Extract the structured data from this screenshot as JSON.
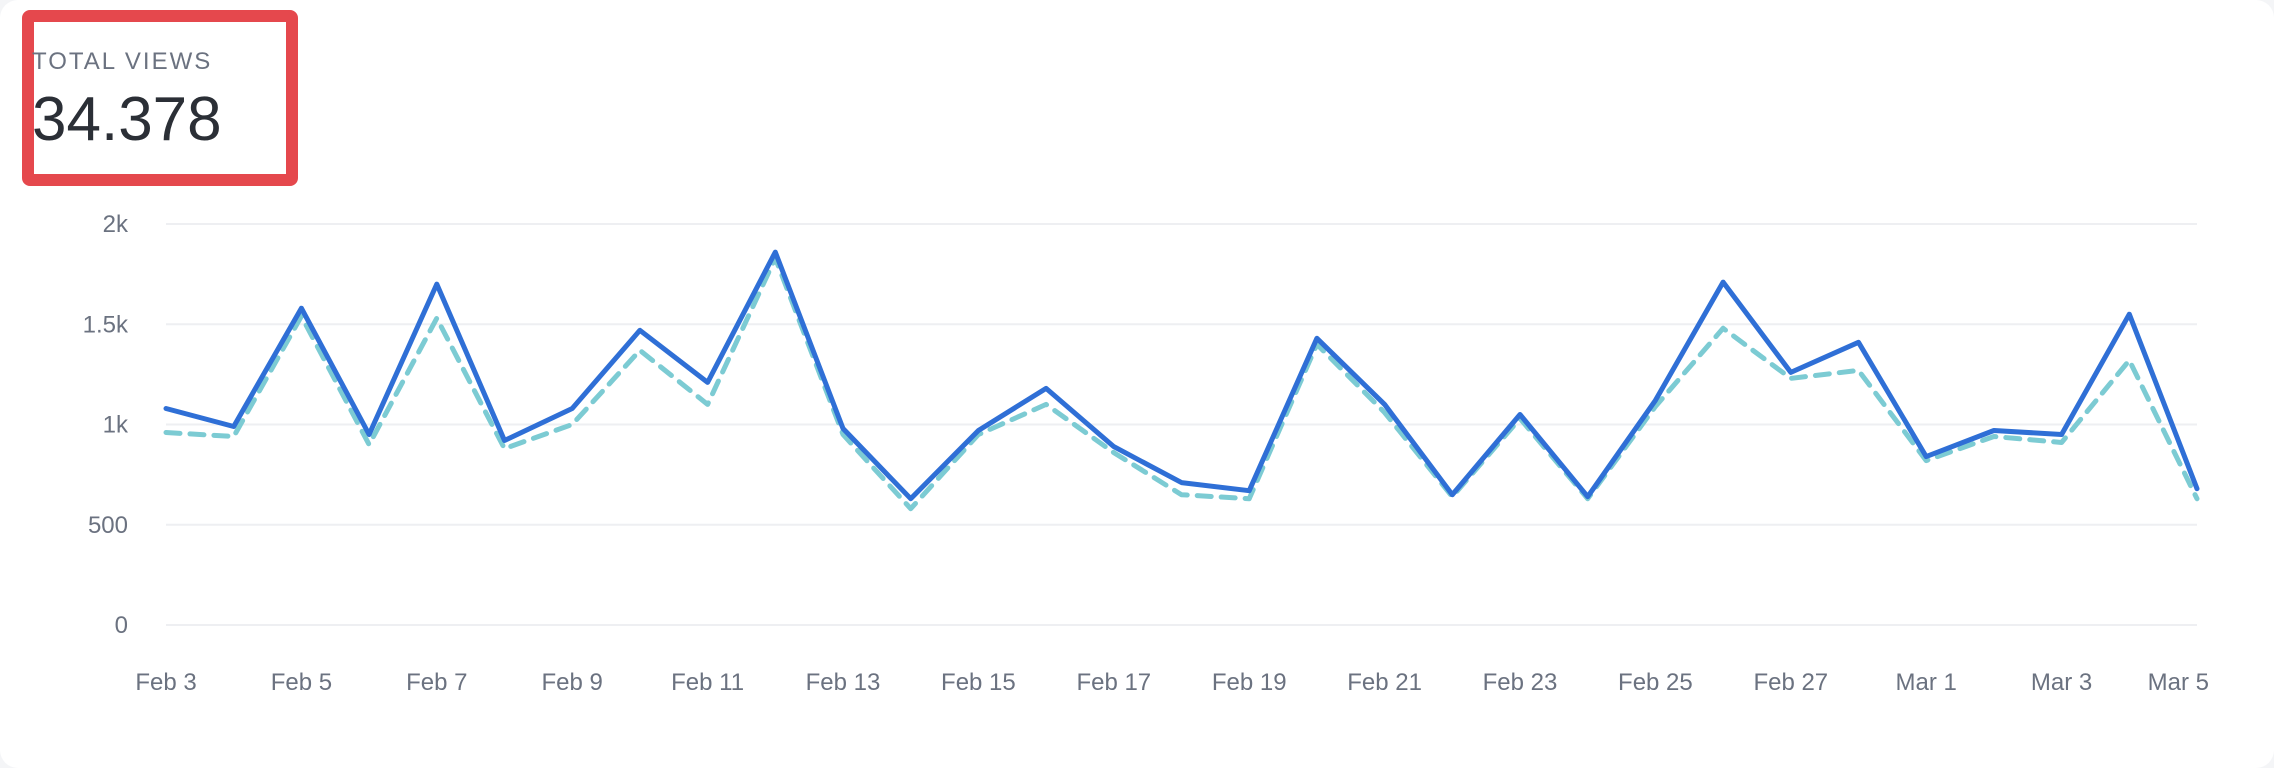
{
  "stat": {
    "label": "TOTAL VIEWS",
    "value": "34.378"
  },
  "colors": {
    "primary": "#2f6fd6",
    "secondary": "#7ccbd3",
    "highlight": "#e5484d",
    "grid": "#eeeff2"
  },
  "chart_data": {
    "type": "line",
    "title": "",
    "xlabel": "",
    "ylabel": "",
    "x": [
      "Feb 3",
      "Feb 4",
      "Feb 5",
      "Feb 6",
      "Feb 7",
      "Feb 8",
      "Feb 9",
      "Feb 10",
      "Feb 11",
      "Feb 12",
      "Feb 13",
      "Feb 14",
      "Feb 15",
      "Feb 16",
      "Feb 17",
      "Feb 18",
      "Feb 19",
      "Feb 20",
      "Feb 21",
      "Feb 22",
      "Feb 23",
      "Feb 24",
      "Feb 25",
      "Feb 26",
      "Feb 27",
      "Feb 28",
      "Mar 1",
      "Mar 2",
      "Mar 3",
      "Mar 4",
      "Mar 5"
    ],
    "x_tick_labels": [
      "Feb 3",
      "Feb 5",
      "Feb 7",
      "Feb 9",
      "Feb 11",
      "Feb 13",
      "Feb 15",
      "Feb 17",
      "Feb 19",
      "Feb 21",
      "Feb 23",
      "Feb 25",
      "Feb 27",
      "Mar 1",
      "Mar 3",
      "Mar 5"
    ],
    "y_ticks": [
      0,
      500,
      1000,
      1500,
      2000
    ],
    "y_tick_labels": [
      "0",
      "500",
      "1k",
      "1.5k",
      "2k"
    ],
    "ylim": [
      0,
      2000
    ],
    "grid": true,
    "series": [
      {
        "style": "solid",
        "color": "#2f6fd6",
        "values": [
          1080,
          990,
          1580,
          950,
          1700,
          920,
          1080,
          1470,
          1210,
          1860,
          980,
          630,
          970,
          1180,
          890,
          710,
          670,
          1430,
          1100,
          650,
          1050,
          640,
          1120,
          1710,
          1260,
          1410,
          840,
          970,
          950,
          1550,
          680
        ]
      },
      {
        "style": "dashed",
        "color": "#7ccbd3",
        "values": [
          960,
          940,
          1540,
          900,
          1530,
          880,
          1000,
          1370,
          1100,
          1830,
          950,
          580,
          950,
          1100,
          860,
          650,
          630,
          1400,
          1060,
          640,
          1030,
          630,
          1090,
          1480,
          1230,
          1270,
          820,
          940,
          910,
          1320,
          630
        ]
      }
    ]
  }
}
